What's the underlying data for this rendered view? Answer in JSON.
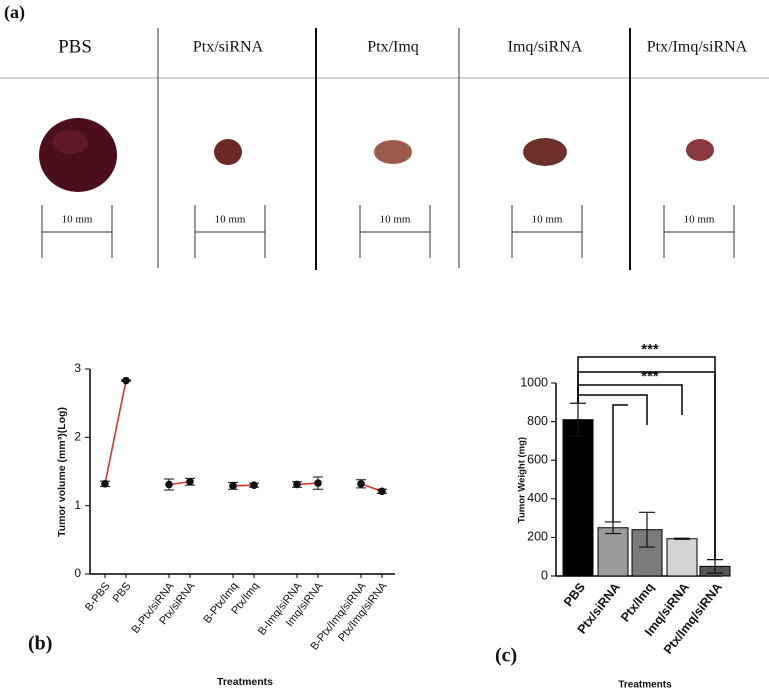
{
  "panel_a": {
    "label": "(a)",
    "columns": [
      "PBS",
      "Ptx/siRNA",
      "Ptx/Imq",
      "Imq/siRNA",
      "Ptx/Imq/siRNA"
    ],
    "scale_label": "10 mm"
  },
  "chart_data": [
    {
      "type": "line",
      "panel_label": "(b)",
      "y_label": "Tumor volume (mm³)(Log)",
      "x_label": "Treatments",
      "categories": [
        "B-PBS",
        "PBS",
        "B-Ptx/siRNA",
        "Ptx/siRNA",
        "B-Ptx/Imq",
        "Ptx/Imq",
        "B-Imq/siRNA",
        "Imq/siRNA",
        "B-Ptx/Imq/siRNA",
        "Ptx/Imq/siRNA"
      ],
      "values": [
        1.32,
        2.83,
        1.31,
        1.35,
        1.29,
        1.3,
        1.31,
        1.33,
        1.32,
        1.21
      ],
      "errors": [
        0.04,
        0.01,
        0.08,
        0.05,
        0.05,
        0.03,
        0.04,
        0.09,
        0.06,
        0.03
      ],
      "color": "#d9342b",
      "marker_color": "#111111",
      "ylim": [
        0,
        3
      ],
      "yticks": [
        0,
        1,
        2,
        3
      ]
    },
    {
      "type": "bar",
      "panel_label": "(c)",
      "y_label": "Tumor Weight (mg)",
      "x_label": "Treatments",
      "categories": [
        "PBS",
        "Ptx/siRNA",
        "Ptx/Imq",
        "Imq/siRNA",
        "Ptx/Imq/siRNA"
      ],
      "values": [
        810,
        250,
        240,
        193,
        50
      ],
      "errors": [
        85,
        30,
        90,
        3,
        35
      ],
      "colors": [
        "#000000",
        "#9a9a9a",
        "#7a7a7a",
        "#d4d4d4",
        "#555555"
      ],
      "ylim": [
        0,
        1000
      ],
      "yticks": [
        0,
        200,
        400,
        600,
        800,
        1000
      ],
      "annotations": [
        "***",
        "***"
      ]
    }
  ]
}
